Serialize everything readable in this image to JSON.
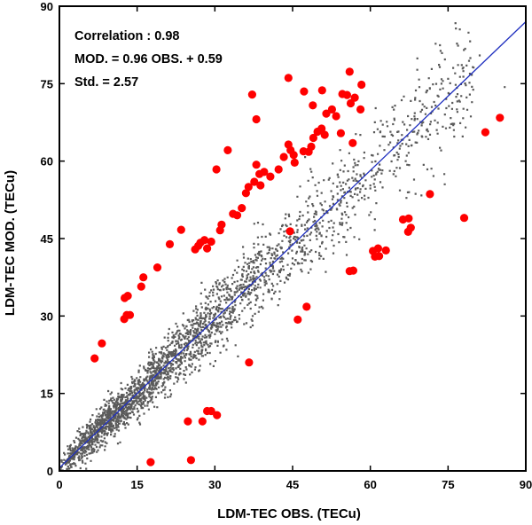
{
  "chart_data": {
    "type": "scatter",
    "xlabel": "LDM-TEC OBS. (TECu)",
    "ylabel": "LDM-TEC MOD. (TECu)",
    "xlim": [
      0,
      90
    ],
    "ylim": [
      0,
      90
    ],
    "x_ticks": [
      0,
      15,
      30,
      45,
      60,
      75,
      90
    ],
    "y_ticks": [
      0,
      15,
      30,
      45,
      60,
      75,
      90
    ],
    "grid": false,
    "annotations": [
      "Correlation  : 0.98",
      "MOD. = 0.96 OBS. + 0.59",
      "Std. = 2.57"
    ],
    "fit_line": {
      "slope": 0.96,
      "intercept": 0.59,
      "color": "#1f2fbf"
    },
    "main_cloud": {
      "color": "#5a5a5a",
      "description_points_along_fit": true,
      "x_range": [
        0,
        89
      ],
      "std": 2.57
    },
    "series": [
      {
        "color": "#ff0000",
        "points": [
          [
            6.8,
            21.8
          ],
          [
            8.2,
            24.7
          ],
          [
            12.5,
            29.4
          ],
          [
            13,
            30.2
          ],
          [
            13.6,
            30.2
          ],
          [
            12.6,
            33.5
          ],
          [
            13.2,
            33.9
          ],
          [
            15.8,
            35.7
          ],
          [
            16.2,
            37.5
          ],
          [
            18.9,
            39.4
          ],
          [
            21.3,
            43.9
          ],
          [
            23.5,
            46.7
          ],
          [
            26.2,
            42.9
          ],
          [
            26.8,
            43.6
          ],
          [
            27.2,
            44.2
          ],
          [
            28,
            44.7
          ],
          [
            28.5,
            43.1
          ],
          [
            29.3,
            44.4
          ],
          [
            31,
            46.6
          ],
          [
            31.3,
            47.7
          ],
          [
            33.5,
            49.8
          ],
          [
            34.3,
            49.5
          ],
          [
            35.2,
            50.9
          ],
          [
            36,
            53.8
          ],
          [
            36.5,
            55
          ],
          [
            37.6,
            56
          ],
          [
            38,
            59.3
          ],
          [
            38.6,
            57.5
          ],
          [
            38.8,
            55.3
          ],
          [
            39.5,
            57.9
          ],
          [
            40.7,
            57
          ],
          [
            42.3,
            58.4
          ],
          [
            43.3,
            60.8
          ],
          [
            44.2,
            63.2
          ],
          [
            44.6,
            62.1
          ],
          [
            45.2,
            61.2
          ],
          [
            45.4,
            59.7
          ],
          [
            47.1,
            61.9
          ],
          [
            48.1,
            61.8
          ],
          [
            48.6,
            62.8
          ],
          [
            49,
            64.5
          ],
          [
            49.8,
            65.7
          ],
          [
            50.6,
            66.3
          ],
          [
            51.2,
            65.1
          ],
          [
            51.5,
            69.2
          ],
          [
            52.6,
            70
          ],
          [
            53.4,
            68.7
          ],
          [
            54.6,
            73
          ],
          [
            55.5,
            72.8
          ],
          [
            56.2,
            71.2
          ],
          [
            56,
            77.3
          ],
          [
            57,
            72.3
          ],
          [
            58.3,
            74.8
          ],
          [
            58.1,
            70
          ],
          [
            37.2,
            72.9
          ],
          [
            38,
            68.1
          ],
          [
            30.3,
            58.4
          ],
          [
            32.5,
            62.1
          ],
          [
            44.2,
            76.1
          ],
          [
            47.2,
            73.5
          ],
          [
            48.9,
            70.8
          ],
          [
            50.7,
            73.7
          ],
          [
            54.3,
            65.4
          ],
          [
            56.6,
            63.5
          ],
          [
            44.5,
            46.4
          ],
          [
            46,
            29.3
          ],
          [
            47.7,
            31.8
          ],
          [
            36.6,
            21
          ],
          [
            30.4,
            10.8
          ],
          [
            28.5,
            11.6
          ],
          [
            29.3,
            11.6
          ],
          [
            27.6,
            9.6
          ],
          [
            24.8,
            9.6
          ],
          [
            17.6,
            1.7
          ],
          [
            25.4,
            2.1
          ],
          [
            56,
            38.7
          ],
          [
            56.7,
            38.8
          ],
          [
            60.5,
            42.6
          ],
          [
            60.9,
            41.5
          ],
          [
            61.7,
            41.6
          ],
          [
            61.5,
            43.1
          ],
          [
            63,
            42.7
          ],
          [
            66.3,
            48.7
          ],
          [
            67.4,
            48.9
          ],
          [
            67.8,
            47.1
          ],
          [
            67.3,
            46.3
          ],
          [
            71.5,
            53.6
          ],
          [
            78.1,
            49
          ],
          [
            82.2,
            65.6
          ],
          [
            85,
            68.4
          ]
        ]
      }
    ]
  }
}
